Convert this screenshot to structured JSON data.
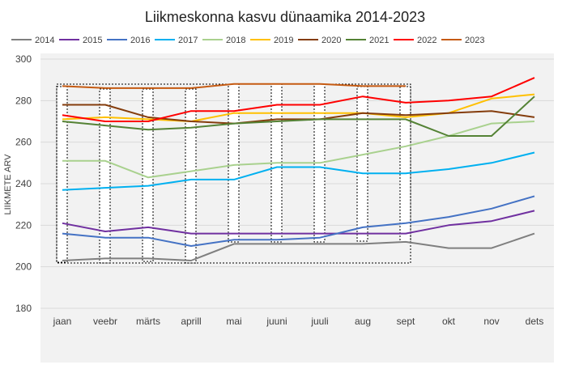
{
  "chart_data": {
    "type": "line",
    "title": "Liikmeskonna kasvu dünaamika 2014-2023",
    "xlabel": "",
    "ylabel": "LIIKMETE ARV",
    "ylim": [
      180,
      300
    ],
    "yticks": [
      180,
      200,
      220,
      240,
      260,
      280,
      300
    ],
    "grid": true,
    "legend_position": "top",
    "categories": [
      "jaan",
      "veebr",
      "märts",
      "aprill",
      "mai",
      "juuni",
      "juuli",
      "aug",
      "sept",
      "okt",
      "nov",
      "dets"
    ],
    "series": [
      {
        "name": "2014",
        "color": "#7f7f7f",
        "values": [
          203,
          204,
          204,
          203,
          211,
          211,
          211,
          211,
          212,
          209,
          209,
          216
        ]
      },
      {
        "name": "2015",
        "color": "#7030a0",
        "values": [
          221,
          217,
          219,
          216,
          216,
          216,
          216,
          216,
          216,
          220,
          222,
          227
        ]
      },
      {
        "name": "2016",
        "color": "#4472c4",
        "values": [
          216,
          214,
          214,
          210,
          213,
          213,
          214,
          219,
          221,
          224,
          228,
          234
        ]
      },
      {
        "name": "2017",
        "color": "#00b0f0",
        "values": [
          237,
          238,
          239,
          242,
          242,
          248,
          248,
          245,
          245,
          247,
          250,
          255
        ]
      },
      {
        "name": "2018",
        "color": "#a9d18e",
        "values": [
          251,
          251,
          243,
          246,
          249,
          250,
          250,
          254,
          258,
          263,
          269,
          270
        ]
      },
      {
        "name": "2019",
        "color": "#ffc000",
        "values": [
          271,
          272,
          271,
          270,
          274,
          274,
          274,
          274,
          272,
          274,
          281,
          283
        ]
      },
      {
        "name": "2020",
        "color": "#843c0c",
        "values": [
          278,
          278,
          272,
          270,
          269,
          271,
          271,
          274,
          273,
          274,
          275,
          272
        ]
      },
      {
        "name": "2021",
        "color": "#548235",
        "values": [
          270,
          268,
          266,
          267,
          269,
          270,
          271,
          271,
          271,
          263,
          263,
          282
        ]
      },
      {
        "name": "2022",
        "color": "#ff0000",
        "values": [
          273,
          270,
          270,
          275,
          275,
          278,
          278,
          282,
          279,
          280,
          282,
          291
        ]
      },
      {
        "name": "2023",
        "color": "#c55a11",
        "values": [
          287,
          286,
          286,
          286,
          288,
          288,
          288,
          287,
          287,
          null,
          null,
          null
        ]
      }
    ]
  }
}
